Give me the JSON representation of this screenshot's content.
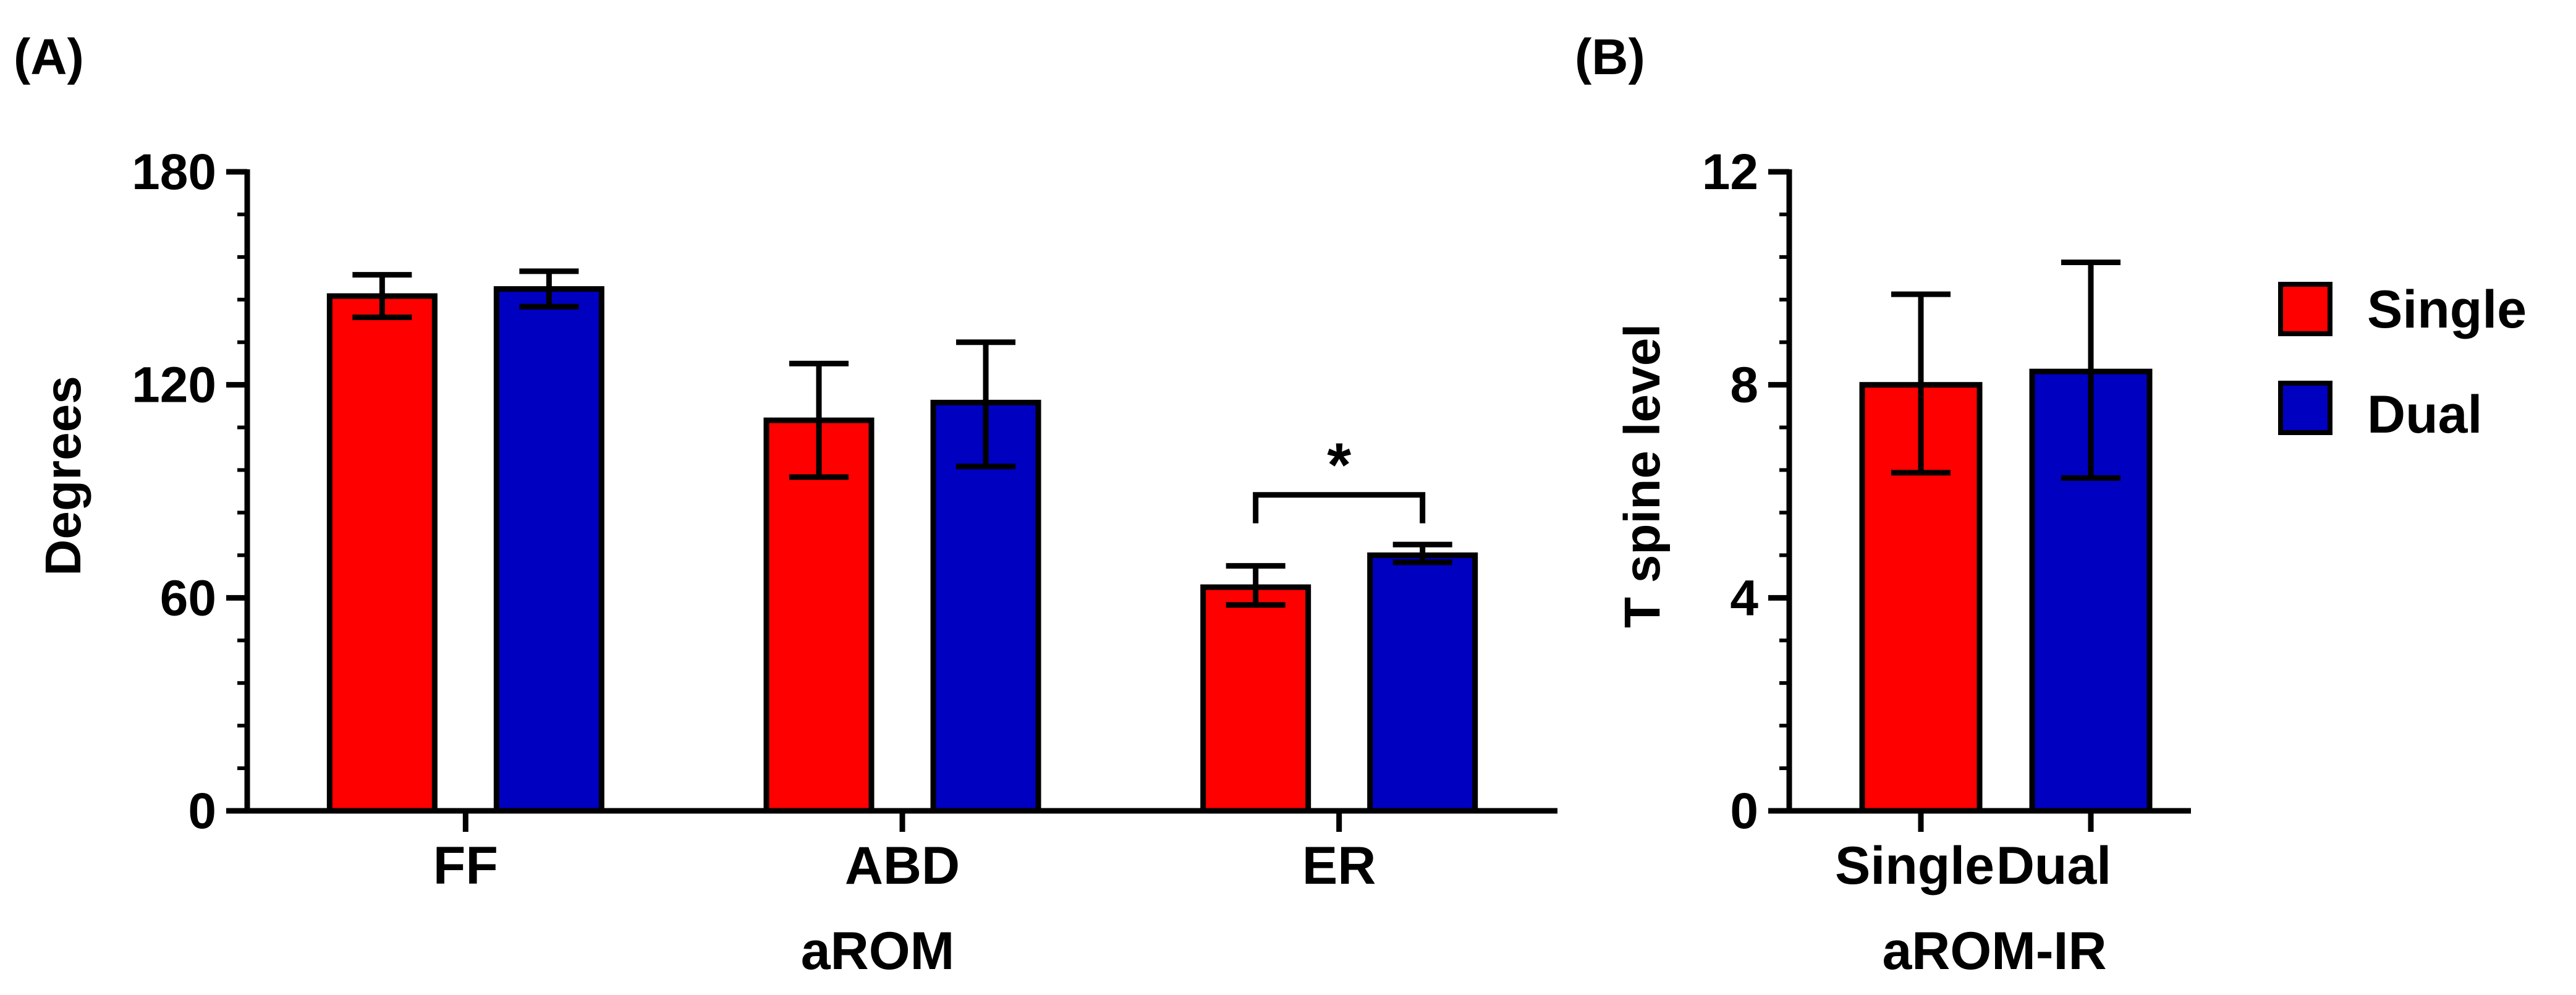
{
  "chart_data": [
    {
      "id": "A",
      "panel_label": "(A)",
      "type": "bar",
      "categories": [
        "FF",
        "ABD",
        "ER"
      ],
      "series": [
        {
          "name": "Single",
          "color": "#ff0000",
          "values": [
            145,
            110,
            63
          ],
          "err_low": [
            139,
            94,
            58
          ],
          "err_high": [
            151,
            126,
            69
          ]
        },
        {
          "name": "Dual",
          "color": "#0000c0",
          "values": [
            147,
            115,
            72
          ],
          "err_low": [
            142,
            97,
            70
          ],
          "err_high": [
            152,
            132,
            75
          ]
        }
      ],
      "ylim": [
        0,
        180
      ],
      "yticks": [
        0,
        60,
        120,
        180
      ],
      "yticks_text": [
        "0",
        "60",
        "120",
        "180"
      ],
      "ylabel": "Degrees",
      "xlabel": "aROM",
      "annotation": {
        "text": "*",
        "category": "ER",
        "bracket_value": 89,
        "arm_bottom_value": 81
      }
    },
    {
      "id": "B",
      "panel_label": "(B)",
      "type": "bar",
      "categories": [
        "Single",
        "Dual"
      ],
      "values": [
        8.0,
        8.25
      ],
      "err_low": [
        6.35,
        6.25
      ],
      "err_high": [
        9.7,
        10.3
      ],
      "colors": [
        "#ff0000",
        "#0000c0"
      ],
      "ylim": [
        0,
        12
      ],
      "yticks": [
        0,
        4,
        8,
        12
      ],
      "yticks_text": [
        "0",
        "4",
        "8",
        "12"
      ],
      "ylabel": "T spine level",
      "xlabel": "aROM-IR"
    }
  ],
  "legend": {
    "position": "right",
    "items": [
      {
        "label": "Single",
        "color": "#ff0000"
      },
      {
        "label": "Dual",
        "color": "#0000c0"
      }
    ]
  }
}
